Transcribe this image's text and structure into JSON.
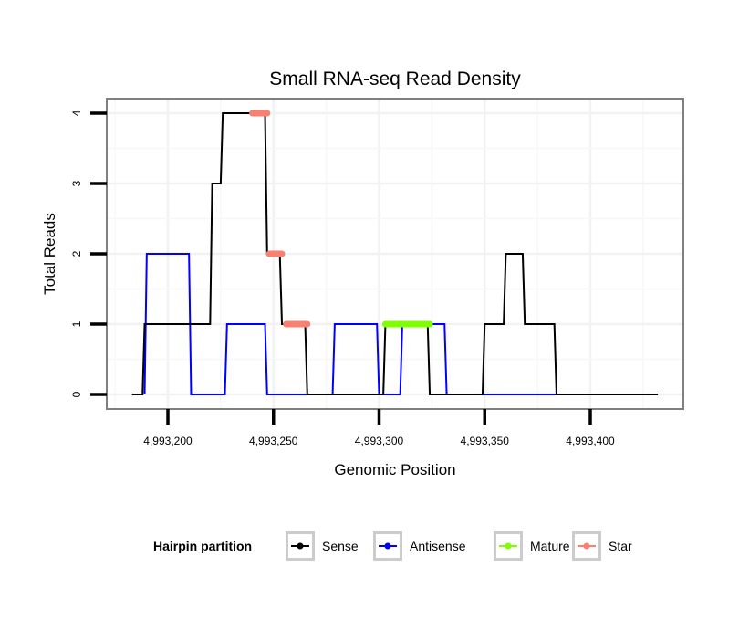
{
  "chart_data": {
    "type": "line",
    "title": "Small RNA-seq Read Density",
    "xlabel": "Genomic Position",
    "ylabel": "Total Reads",
    "xlim": [
      4993173,
      4993442
    ],
    "ylim": [
      -0.2,
      4.2
    ],
    "x_ticks": [
      4993200,
      4993250,
      4993300,
      4993350,
      4993400
    ],
    "x_tick_labels": [
      "4,993,200",
      "4,993,250",
      "4,993,300",
      "4,993,350",
      "4,993,400"
    ],
    "y_ticks": [
      0,
      1,
      2,
      3,
      4
    ],
    "y_tick_labels": [
      "0",
      "1",
      "2",
      "3",
      "4"
    ],
    "grid": true,
    "legend": {
      "title": "Hairpin partition",
      "placement": "bottom",
      "entries": [
        {
          "name": "Sense",
          "color": "#000000"
        },
        {
          "name": "Antisense",
          "color": "#0000ff"
        },
        {
          "name": "Mature",
          "color": "#7fff00"
        },
        {
          "name": "Star",
          "color": "#fa8072"
        }
      ]
    },
    "series": [
      {
        "name": "Sense",
        "color": "#000000",
        "points": [
          [
            4993183,
            0
          ],
          [
            4993188,
            0
          ],
          [
            4993189,
            1
          ],
          [
            4993220,
            1
          ],
          [
            4993221,
            3
          ],
          [
            4993225,
            3
          ],
          [
            4993226,
            4
          ],
          [
            4993246,
            4
          ],
          [
            4993247,
            2
          ],
          [
            4993253,
            2
          ],
          [
            4993254,
            1
          ],
          [
            4993265,
            1
          ],
          [
            4993266,
            0
          ],
          [
            4993302,
            0
          ],
          [
            4993303,
            1
          ],
          [
            4993323,
            1
          ],
          [
            4993324,
            0
          ],
          [
            4993349,
            0
          ],
          [
            4993350,
            1
          ],
          [
            4993359,
            1
          ],
          [
            4993360,
            2
          ],
          [
            4993368,
            2
          ],
          [
            4993369,
            1
          ],
          [
            4993383,
            1
          ],
          [
            4993384,
            0
          ],
          [
            4993432,
            0
          ]
        ]
      },
      {
        "name": "Antisense",
        "color": "#0000ff",
        "points": [
          [
            4993189,
            0
          ],
          [
            4993190,
            2
          ],
          [
            4993210,
            2
          ],
          [
            4993211,
            0
          ],
          [
            4993227,
            0
          ],
          [
            4993228,
            1
          ],
          [
            4993246,
            1
          ],
          [
            4993247,
            0
          ],
          [
            4993278,
            0
          ],
          [
            4993279,
            1
          ],
          [
            4993299,
            1
          ],
          [
            4993300,
            0
          ],
          [
            4993310,
            0
          ],
          [
            4993311,
            1
          ],
          [
            4993331,
            1
          ],
          [
            4993332,
            0
          ],
          [
            4993384,
            0
          ]
        ]
      },
      {
        "name": "Mature",
        "color": "#7fff00",
        "points": [
          [
            4993303,
            1
          ],
          [
            4993324,
            1
          ]
        ]
      },
      {
        "name": "Star",
        "segments": [
          [
            [
              4993240,
              4
            ],
            [
              4993247,
              4
            ]
          ],
          [
            [
              4993248,
              2
            ],
            [
              4993254,
              2
            ]
          ],
          [
            [
              4993256,
              1
            ],
            [
              4993266,
              1
            ]
          ]
        ],
        "color": "#fa8072"
      }
    ]
  }
}
